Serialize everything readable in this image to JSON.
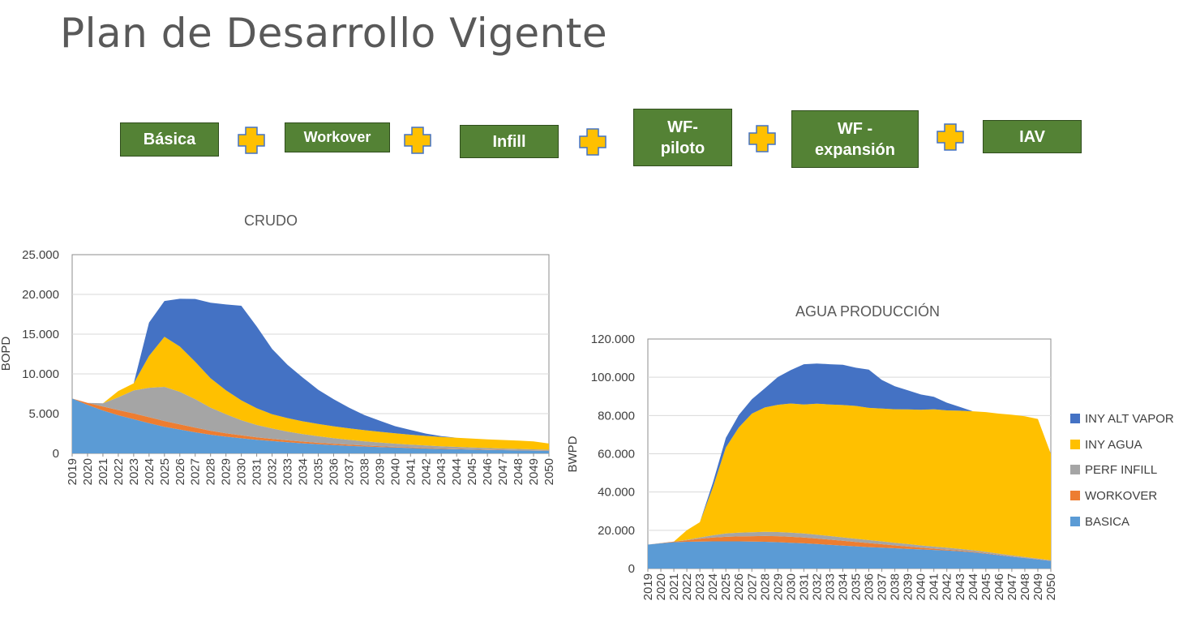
{
  "page": {
    "title": "Plan de Desarrollo Vigente"
  },
  "flow": {
    "boxes": [
      {
        "label": "Básica"
      },
      {
        "label": "Workover"
      },
      {
        "label": "Infill"
      },
      {
        "label": "WF-\npiloto"
      },
      {
        "label": "WF -\nexpansión"
      },
      {
        "label": "IAV"
      }
    ]
  },
  "colors": {
    "basica": "#5B9BD5",
    "workover": "#ED7D31",
    "perf_infill": "#A5A5A5",
    "iny_agua": "#FFC000",
    "iny_alt_vapor": "#4472C4",
    "box_green": "#548235",
    "plus_fill": "#FFC000",
    "plus_stroke": "#4472C4"
  },
  "legend": {
    "items": [
      {
        "label": "INY ALT VAPOR",
        "color": "#4472C4"
      },
      {
        "label": "INY AGUA",
        "color": "#FFC000"
      },
      {
        "label": "PERF INFILL",
        "color": "#A5A5A5"
      },
      {
        "label": "WORKOVER",
        "color": "#ED7D31"
      },
      {
        "label": "BASICA",
        "color": "#5B9BD5"
      }
    ]
  },
  "chart_data": [
    {
      "type": "area",
      "stacked": true,
      "title": "CRUDO",
      "ylabel": "BOPD",
      "xlabel": "",
      "ylim": [
        0,
        25000
      ],
      "yticks": [
        "0",
        "5.000",
        "10.000",
        "15.000",
        "20.000",
        "25.000"
      ],
      "yticks_values": [
        0,
        5000,
        10000,
        15000,
        20000,
        25000
      ],
      "x": [
        2019,
        2020,
        2021,
        2022,
        2023,
        2024,
        2025,
        2026,
        2027,
        2028,
        2029,
        2030,
        2031,
        2032,
        2033,
        2034,
        2035,
        2036,
        2037,
        2038,
        2039,
        2040,
        2041,
        2042,
        2043,
        2044,
        2045,
        2046,
        2047,
        2048,
        2049,
        2050
      ],
      "series": [
        {
          "name": "BASICA",
          "values": [
            6900,
            6100,
            5400,
            4800,
            4300,
            3800,
            3350,
            3000,
            2650,
            2350,
            2100,
            1900,
            1700,
            1550,
            1400,
            1270,
            1150,
            1050,
            950,
            870,
            800,
            730,
            670,
            610,
            560,
            520,
            480,
            440,
            410,
            380,
            350,
            320
          ]
        },
        {
          "name": "WORKOVER",
          "values": [
            0,
            250,
            500,
            650,
            720,
            750,
            720,
            650,
            580,
            500,
            430,
            370,
            320,
            280,
            240,
            210,
            180,
            160,
            140,
            120,
            105,
            90,
            80,
            70,
            60,
            52,
            45,
            40,
            35,
            30,
            26,
            22
          ]
        },
        {
          "name": "PERF INFILL",
          "values": [
            0,
            0,
            400,
            1600,
            2900,
            3700,
            4300,
            4100,
            3600,
            2900,
            2400,
            1900,
            1550,
            1300,
            1100,
            950,
            820,
            700,
            610,
            530,
            460,
            400,
            350,
            310,
            270,
            240,
            210,
            190,
            170,
            150,
            130,
            115
          ]
        },
        {
          "name": "INY AGUA",
          "values": [
            0,
            0,
            0,
            800,
            900,
            4000,
            6300,
            5700,
            4700,
            3700,
            3000,
            2500,
            2100,
            1800,
            1700,
            1600,
            1550,
            1500,
            1450,
            1400,
            1350,
            1300,
            1250,
            1200,
            1180,
            1150,
            1120,
            1100,
            1070,
            1040,
            1000,
            780
          ]
        },
        {
          "name": "INY ALT VAPOR",
          "values": [
            0,
            0,
            0,
            0,
            0,
            4200,
            4500,
            6000,
            7900,
            9500,
            10800,
            11900,
            10300,
            8200,
            6700,
            5500,
            4300,
            3400,
            2600,
            1900,
            1400,
            900,
            600,
            300,
            100,
            0,
            0,
            0,
            0,
            0,
            0,
            0
          ]
        }
      ]
    },
    {
      "type": "area",
      "stacked": true,
      "title": "AGUA PRODUCCIÓN",
      "ylabel": "BWPD",
      "xlabel": "",
      "ylim": [
        0,
        120000
      ],
      "yticks": [
        "0",
        "20.000",
        "40.000",
        "60.000",
        "80.000",
        "100.000",
        "120.000"
      ],
      "yticks_values": [
        0,
        20000,
        40000,
        60000,
        80000,
        100000,
        120000
      ],
      "x": [
        2019,
        2020,
        2021,
        2022,
        2023,
        2024,
        2025,
        2026,
        2027,
        2028,
        2029,
        2030,
        2031,
        2032,
        2033,
        2034,
        2035,
        2036,
        2037,
        2038,
        2039,
        2040,
        2041,
        2042,
        2043,
        2044,
        2045,
        2046,
        2047,
        2048,
        2049,
        2050
      ],
      "series": [
        {
          "name": "BASICA",
          "values": [
            12500,
            13200,
            13800,
            14000,
            14100,
            14200,
            14200,
            14200,
            14100,
            14000,
            13800,
            13500,
            13200,
            12800,
            12400,
            12000,
            11600,
            11200,
            10900,
            10600,
            10300,
            10000,
            9700,
            9400,
            9000,
            8500,
            7800,
            7000,
            6200,
            5500,
            4800,
            4000
          ]
        },
        {
          "name": "WORKOVER",
          "values": [
            0,
            100,
            300,
            800,
            1500,
            2000,
            2400,
            2600,
            2800,
            3000,
            3100,
            3100,
            3000,
            2900,
            2700,
            2500,
            2300,
            2100,
            1800,
            1500,
            1200,
            900,
            700,
            500,
            400,
            300,
            250,
            200,
            150,
            120,
            100,
            80
          ]
        },
        {
          "name": "PERF INFILL",
          "values": [
            0,
            0,
            0,
            200,
            600,
            1200,
            1700,
            2000,
            2100,
            2200,
            2200,
            2200,
            2100,
            2000,
            1900,
            1800,
            1700,
            1600,
            1500,
            1400,
            1300,
            1200,
            1100,
            1000,
            900,
            800,
            700,
            600,
            500,
            420,
            350,
            280
          ]
        },
        {
          "name": "INY AGUA",
          "values": [
            0,
            0,
            0,
            5000,
            8000,
            25000,
            45000,
            55000,
            62000,
            65000,
            66500,
            67500,
            67500,
            68500,
            68800,
            69200,
            69400,
            69100,
            69400,
            69800,
            70400,
            70900,
            71800,
            71800,
            72200,
            72600,
            73050,
            73200,
            73550,
            73560,
            72950,
            55600
          ]
        },
        {
          "name": "INY ALT VAPOR",
          "values": [
            0,
            0,
            0,
            0,
            0,
            2500,
            5000,
            6500,
            7500,
            10000,
            14500,
            17500,
            21000,
            21000,
            21000,
            21000,
            20000,
            20000,
            15000,
            12000,
            10000,
            8000,
            6500,
            4000,
            2000,
            0,
            0,
            0,
            0,
            0,
            0,
            0
          ]
        }
      ]
    }
  ]
}
